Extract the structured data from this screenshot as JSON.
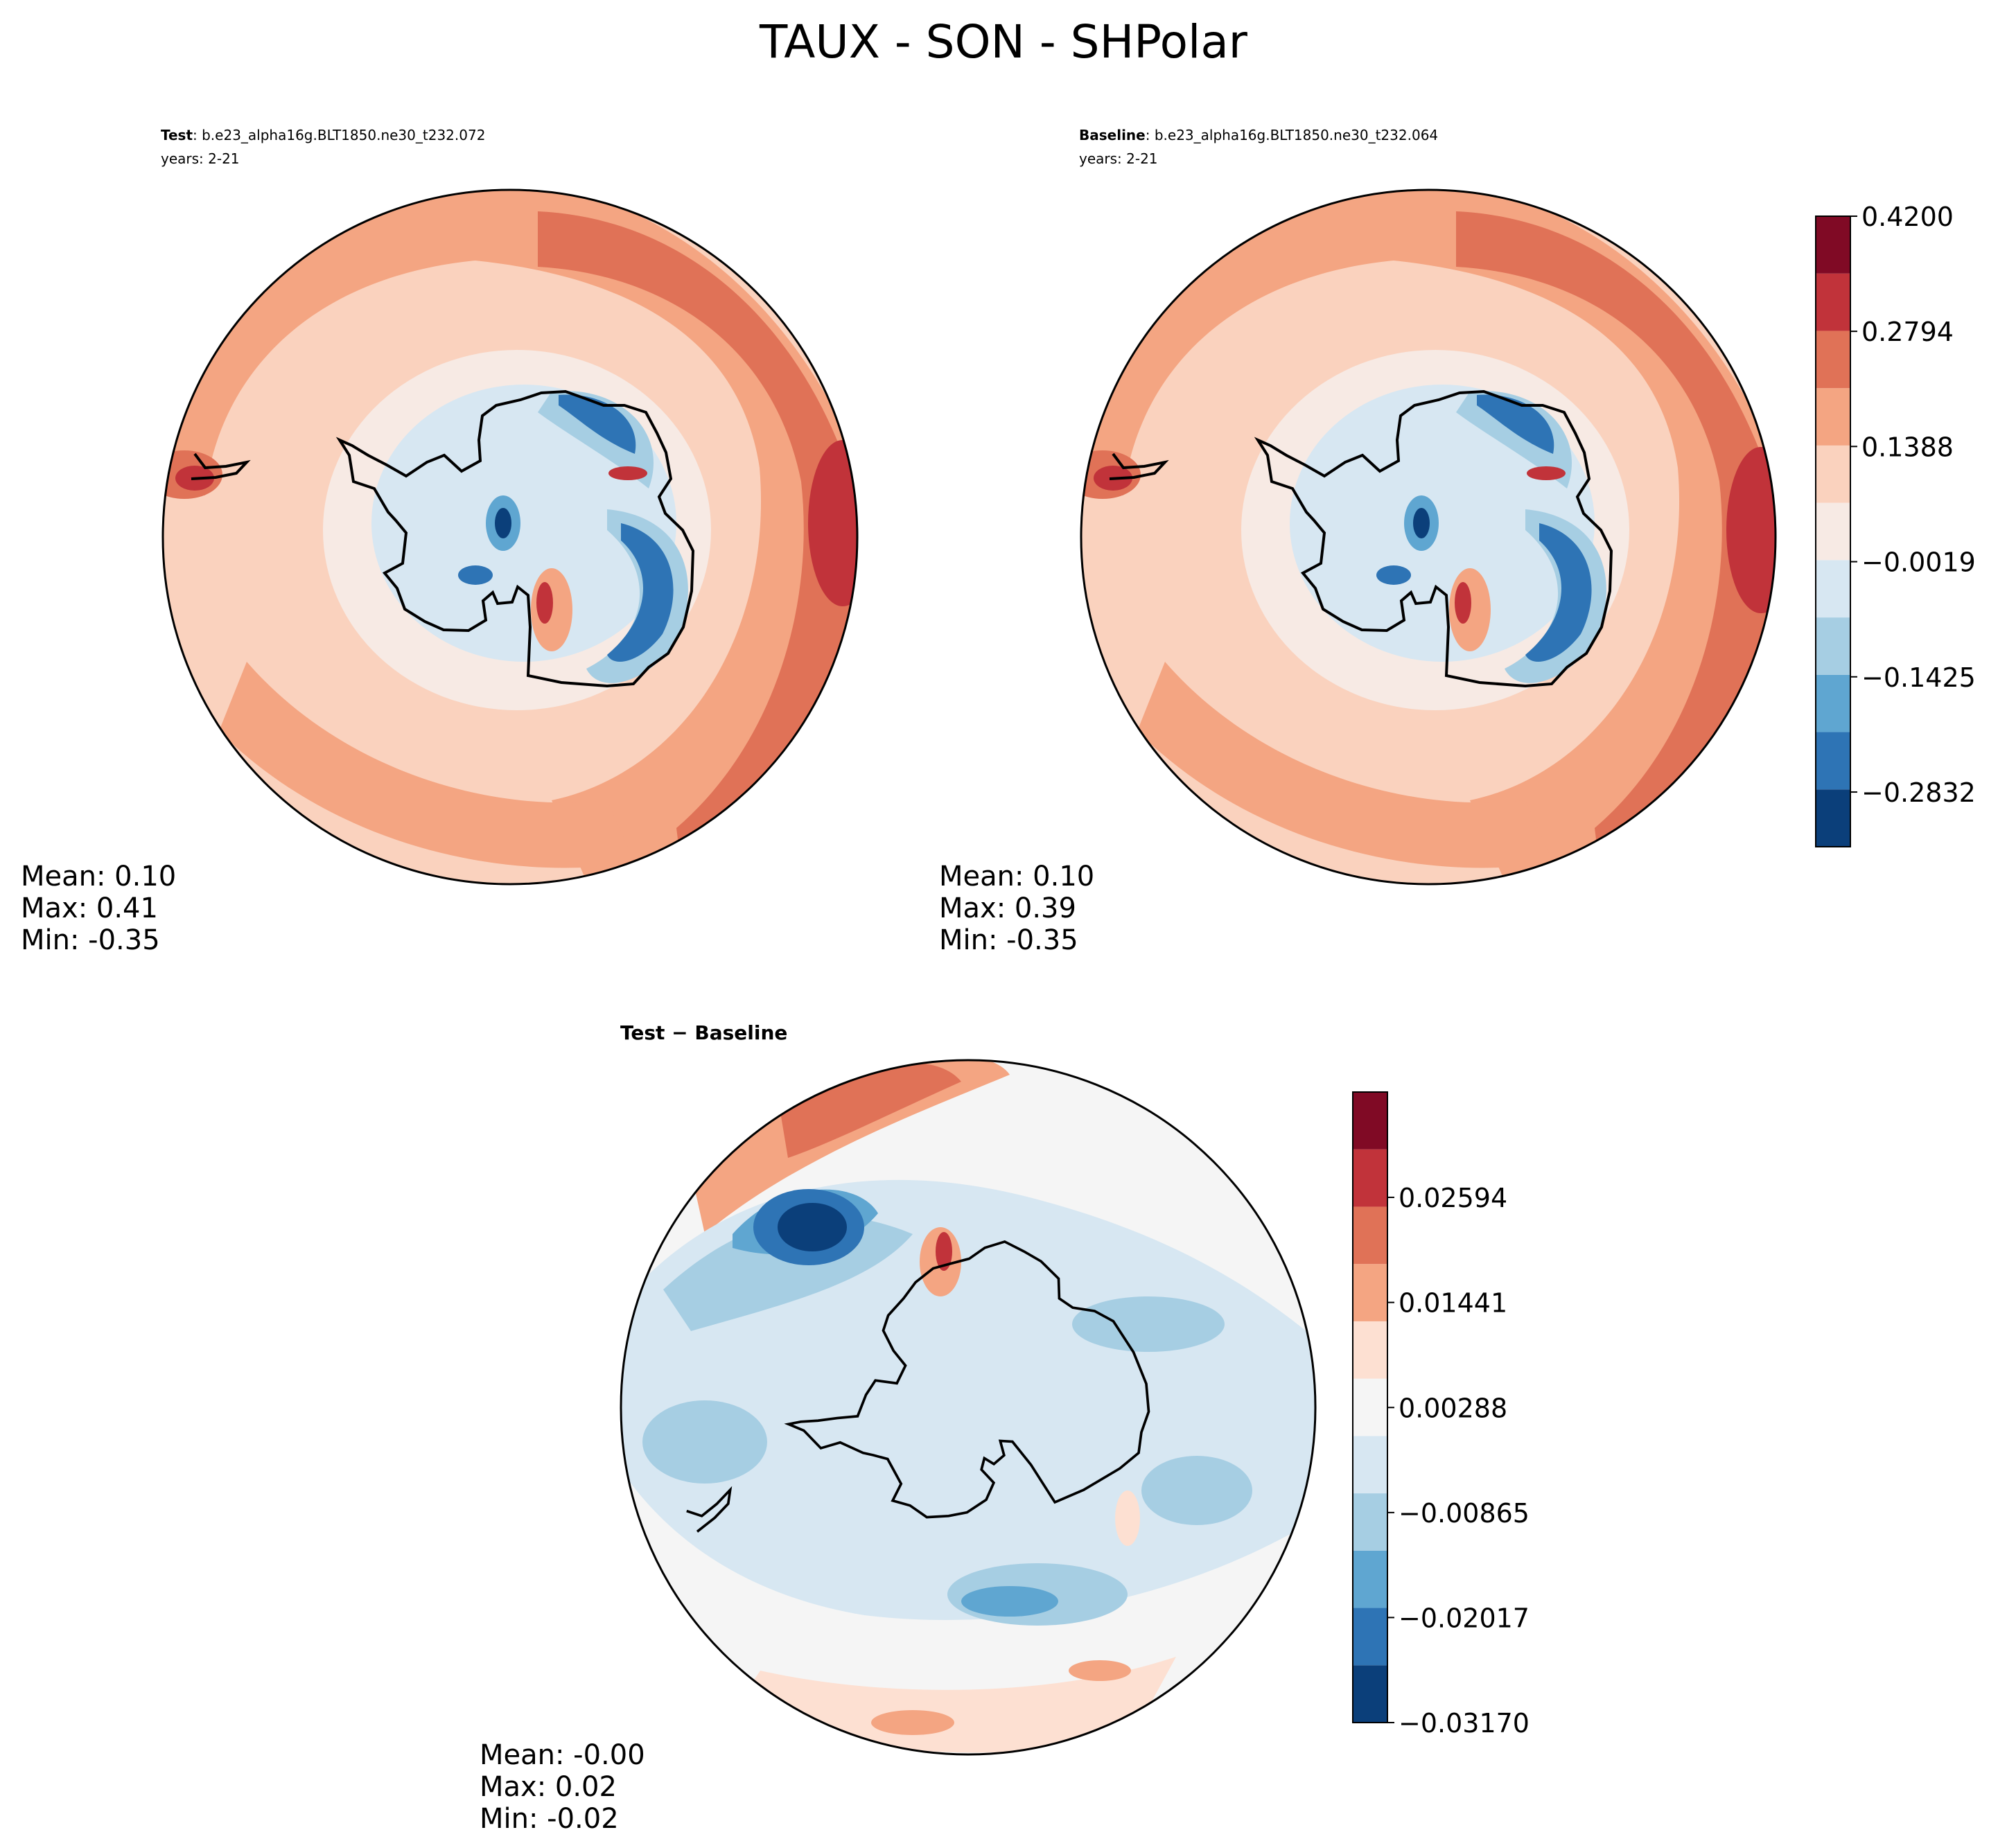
{
  "figure": {
    "title": "TAUX - SON - SHPolar"
  },
  "colors": {
    "levels_11": [
      "#0b3f7a",
      "#2e74b5",
      "#5fa6d1",
      "#a6cee3",
      "#d7e7f2",
      "#f7eae4",
      "#fad2be",
      "#f4a582",
      "#e07257",
      "#c1333a",
      "#800a25"
    ],
    "diff_levels": [
      "#0b3f7a",
      "#2e74b5",
      "#5fa6d1",
      "#a6cee3",
      "#d7e7f2",
      "#f5f5f5",
      "#fde0d2",
      "#f4a582",
      "#e07257",
      "#c1333a",
      "#800a25"
    ],
    "coast": "#000000"
  },
  "panels": {
    "test": {
      "label_bold": "Test",
      "case": ": b.e23_alpha16g.BLT1850.ne30_t232.072",
      "years": "years: 2-21",
      "stats": {
        "mean": "Mean:  0.10",
        "max": "Max:  0.41",
        "min": "Min: -0.35"
      }
    },
    "baseline": {
      "label_bold": "Baseline",
      "case": ": b.e23_alpha16g.BLT1850.ne30_t232.064",
      "years": "years: 2-21",
      "stats": {
        "mean": "Mean:  0.10",
        "max": "Max:  0.39",
        "min": "Min: -0.35"
      }
    },
    "diff": {
      "label_bold": "Test − Baseline",
      "stats": {
        "mean": "Mean: -0.00",
        "max": "Max:  0.02",
        "min": "Min: -0.02"
      }
    }
  },
  "colorbars": {
    "main": {
      "ticks": [
        "0.4200",
        "0.2794",
        "0.1388",
        "−0.0019",
        "−0.1425",
        "−0.2832"
      ],
      "tick_values": [
        0.42,
        0.2794,
        0.1388,
        -0.0019,
        -0.1425,
        -0.2832
      ],
      "vmin": -0.35,
      "vmax": 0.42
    },
    "diff": {
      "ticks": [
        "0.02594",
        "0.01441",
        "0.00288",
        "−0.00865",
        "−0.02017",
        "−0.03170"
      ],
      "tick_values": [
        0.02594,
        0.01441,
        0.00288,
        -0.00865,
        -0.02017,
        -0.0317
      ],
      "vmin": -0.0317,
      "vmax": 0.0375
    }
  },
  "chart_data": [
    {
      "type": "heatmap",
      "title": "Test: b.e23_alpha16g.BLT1850.ne30_t232.072",
      "subtitle": "years: 2-21",
      "projection": "south polar stereographic",
      "stats": {
        "mean": 0.1,
        "max": 0.41,
        "min": -0.35
      },
      "colorbar_ticks": [
        0.42,
        0.2794,
        0.1388,
        -0.0019,
        -0.1425,
        -0.2832
      ]
    },
    {
      "type": "heatmap",
      "title": "Baseline: b.e23_alpha16g.BLT1850.ne30_t232.064",
      "subtitle": "years: 2-21",
      "projection": "south polar stereographic",
      "stats": {
        "mean": 0.1,
        "max": 0.39,
        "min": -0.35
      },
      "colorbar_ticks": [
        0.42,
        0.2794,
        0.1388,
        -0.0019,
        -0.1425,
        -0.2832
      ]
    },
    {
      "type": "heatmap",
      "title": "Test − Baseline",
      "projection": "south polar stereographic",
      "stats": {
        "mean": -0.0,
        "max": 0.02,
        "min": -0.02
      },
      "colorbar_ticks": [
        0.02594,
        0.01441,
        0.00288,
        -0.00865,
        -0.02017,
        -0.0317
      ]
    }
  ]
}
